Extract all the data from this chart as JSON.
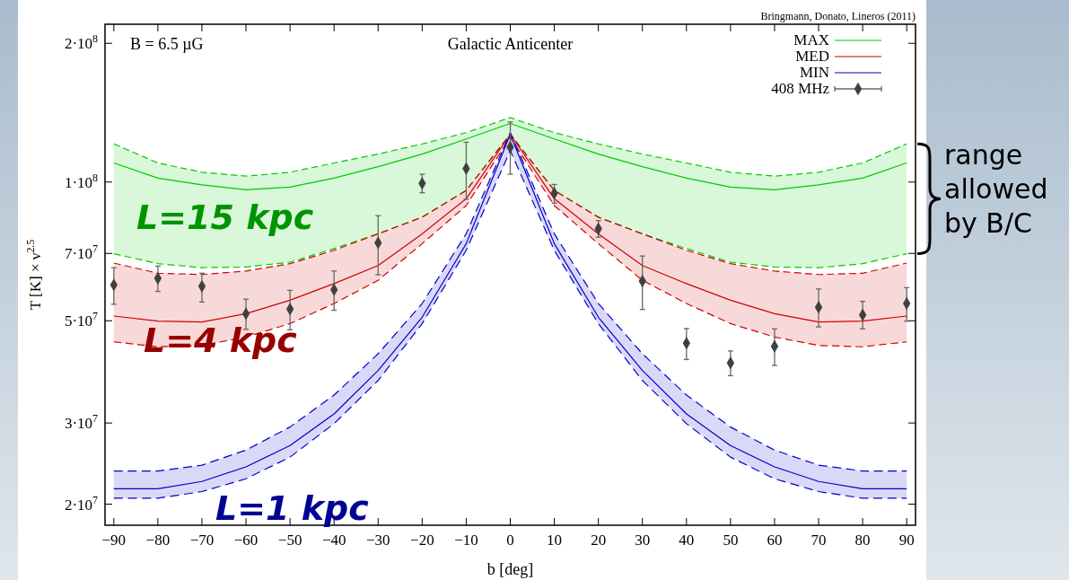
{
  "chart_data": {
    "type": "line",
    "title": "Galactic Anticenter",
    "xlabel": "b [deg]",
    "ylabel": "T [K] × ν$^{2.5}$",
    "log": "y",
    "xlim": [
      -92,
      92
    ],
    "ylim": [
      18000000.0,
      220000000.0
    ],
    "xticks": [
      -90,
      -80,
      -70,
      -60,
      -50,
      -40,
      -30,
      -20,
      -10,
      0,
      10,
      20,
      30,
      40,
      50,
      60,
      70,
      80,
      90
    ],
    "yticks": [
      {
        "value": 20000000.0,
        "label": "2·10$^{7}$"
      },
      {
        "value": 30000000.0,
        "label": "3·10$^{7}$"
      },
      {
        "value": 50000000.0,
        "label": "5·10$^{7}$"
      },
      {
        "value": 70000000.0,
        "label": "7·10$^{7}$"
      },
      {
        "value": 100000000.0,
        "label": "1·10$^{8}$"
      },
      {
        "value": 200000000.0,
        "label": "2·10$^{8}$"
      }
    ],
    "x": [
      -90,
      -80,
      -70,
      -60,
      -50,
      -40,
      -30,
      -20,
      -10,
      0,
      10,
      20,
      30,
      40,
      50,
      60,
      70,
      80,
      90
    ],
    "legend": "top right",
    "series": [
      {
        "name": "MAX",
        "color": "#00cc00",
        "values": [
          110000000.0,
          102000000.0,
          98600000.0,
          96200000.0,
          97500000.0,
          102000000.0,
          108000000.0,
          115000000.0,
          124000000.0,
          134000000.0,
          124000000.0,
          115000000.0,
          108000000.0,
          102000000.0,
          97500000.0,
          96200000.0,
          98600000.0,
          102000000.0,
          110000000.0
        ],
        "upper": [
          121000000.0,
          110000000.0,
          105000000.0,
          103000000.0,
          105000000.0,
          110000000.0,
          115000000.0,
          121000000.0,
          128000000.0,
          138000000.0,
          128000000.0,
          121000000.0,
          115000000.0,
          110000000.0,
          105000000.0,
          103000000.0,
          105000000.0,
          110000000.0,
          121000000.0
        ],
        "lower": [
          69900000.0,
          66500000.0,
          65200000.0,
          65400000.0,
          67000000.0,
          71700000.0,
          77200000.0,
          83900000.0,
          95900000.0,
          127000000.0,
          95900000.0,
          83900000.0,
          77200000.0,
          71700000.0,
          67000000.0,
          65400000.0,
          65200000.0,
          66500000.0,
          69900000.0
        ]
      },
      {
        "name": "MED",
        "color": "#d00000",
        "values": [
          51200000.0,
          49900000.0,
          49700000.0,
          51800000.0,
          55400000.0,
          60200000.0,
          65900000.0,
          77200000.0,
          92000000.0,
          127000000.0,
          92000000.0,
          77200000.0,
          65900000.0,
          60200000.0,
          55400000.0,
          51800000.0,
          49700000.0,
          49900000.0,
          51200000.0
        ],
        "upper": [
          66700000.0,
          63400000.0,
          63000000.0,
          64100000.0,
          66500000.0,
          71100000.0,
          77200000.0,
          83900000.0,
          95900000.0,
          127000000.0,
          95900000.0,
          83900000.0,
          77200000.0,
          71100000.0,
          66500000.0,
          64100000.0,
          63000000.0,
          63400000.0,
          66700000.0
        ],
        "lower": [
          45000000.0,
          43900000.0,
          44200000.0,
          46100000.0,
          49300000.0,
          54500000.0,
          61200000.0,
          73500000.0,
          88900000.0,
          125000000.0,
          88900000.0,
          73500000.0,
          61200000.0,
          54500000.0,
          49300000.0,
          46100000.0,
          44200000.0,
          43900000.0,
          45000000.0
        ]
      },
      {
        "name": "MIN",
        "color": "#0000cc",
        "values": [
          21600000.0,
          21600000.0,
          22400000.0,
          24100000.0,
          26800000.0,
          31400000.0,
          39000000.0,
          50900000.0,
          73500000.0,
          127000000.0,
          73500000.0,
          50900000.0,
          39000000.0,
          31400000.0,
          26800000.0,
          24100000.0,
          22400000.0,
          21600000.0,
          21600000.0
        ],
        "upper": [
          23600000.0,
          23600000.0,
          24300000.0,
          26200000.0,
          29400000.0,
          34500000.0,
          42400000.0,
          54500000.0,
          77200000.0,
          128000000.0,
          77200000.0,
          54500000.0,
          42400000.0,
          34500000.0,
          29400000.0,
          26200000.0,
          24300000.0,
          23600000.0,
          23600000.0
        ],
        "lower": [
          20600000.0,
          20600000.0,
          21300000.0,
          22700000.0,
          25300000.0,
          29900000.0,
          37100000.0,
          49300000.0,
          71100000.0,
          117000000.0,
          71100000.0,
          49300000.0,
          37100000.0,
          29900000.0,
          25300000.0,
          22700000.0,
          21300000.0,
          20600000.0,
          20600000.0
        ]
      },
      {
        "color": "#00cc00",
        "line_style": "dashed",
        "values": [
          121000000.0,
          110000000.0,
          105000000.0,
          103000000.0,
          105000000.0,
          110000000.0,
          115000000.0,
          121000000.0,
          128000000.0,
          138000000.0,
          128000000.0,
          121000000.0,
          115000000.0,
          110000000.0,
          105000000.0,
          103000000.0,
          105000000.0,
          110000000.0,
          121000000.0
        ]
      },
      {
        "color": "#00cc00",
        "line_style": "dashed",
        "values": [
          69900000.0,
          66500000.0,
          65200000.0,
          65400000.0,
          67000000.0,
          71700000.0,
          77200000.0,
          83900000.0,
          95900000.0,
          127000000.0,
          95900000.0,
          83900000.0,
          77200000.0,
          71700000.0,
          67000000.0,
          65400000.0,
          65200000.0,
          66500000.0,
          69900000.0
        ]
      },
      {
        "color": "#d00000",
        "line_style": "dashed",
        "values": [
          66700000.0,
          63400000.0,
          63000000.0,
          64100000.0,
          66500000.0,
          71100000.0,
          77200000.0,
          83900000.0,
          95900000.0,
          127000000.0,
          95900000.0,
          83900000.0,
          77200000.0,
          71100000.0,
          66500000.0,
          64100000.0,
          63000000.0,
          63400000.0,
          66700000.0
        ]
      },
      {
        "color": "#d00000",
        "line_style": "dashed",
        "values": [
          45000000.0,
          43900000.0,
          44200000.0,
          46100000.0,
          49300000.0,
          54500000.0,
          61200000.0,
          73500000.0,
          88900000.0,
          125000000.0,
          88900000.0,
          73500000.0,
          61200000.0,
          54500000.0,
          49300000.0,
          46100000.0,
          44200000.0,
          43900000.0,
          45000000.0
        ]
      },
      {
        "color": "#0000cc",
        "line_style": "dashed",
        "values": [
          23600000.0,
          23600000.0,
          24300000.0,
          26200000.0,
          29400000.0,
          34500000.0,
          42400000.0,
          54500000.0,
          77200000.0,
          128000000.0,
          77200000.0,
          54500000.0,
          42400000.0,
          34500000.0,
          29400000.0,
          26200000.0,
          24300000.0,
          23600000.0,
          23600000.0
        ]
      },
      {
        "color": "#0000cc",
        "line_style": "dashed",
        "values": [
          20600000.0,
          20600000.0,
          21300000.0,
          22700000.0,
          25300000.0,
          29900000.0,
          37100000.0,
          49300000.0,
          71100000.0,
          117000000.0,
          71100000.0,
          49300000.0,
          37100000.0,
          29900000.0,
          25300000.0,
          22700000.0,
          21300000.0,
          20600000.0,
          20600000.0
        ]
      },
      {
        "name": "408 MHz",
        "type": "scatter",
        "color": "#404040",
        "marker": "diamond",
        "values": [
          59800000.0,
          61800000.0,
          59400000.0,
          51800000.0,
          53000000.0,
          58400000.0,
          73800000.0,
          99300000.0,
          107000000.0,
          119000000.0,
          94600000.0,
          79200000.0,
          61000000.0,
          44700000.0,
          40500000.0,
          44000000.0,
          53500000.0,
          51500000.0,
          54500000.0
        ],
        "errors": [
          [
            54300000.0,
            65200000.0
          ],
          [
            57900000.0,
            65700000.0
          ],
          [
            54900000.0,
            63400000.0
          ],
          [
            47900000.0,
            55700000.0
          ],
          [
            47800000.0,
            58200000.0
          ],
          [
            52700000.0,
            64100000.0
          ],
          [
            62900000.0,
            84500000.0
          ],
          [
            94800000.0,
            104000000.0
          ],
          [
            91800000.0,
            122000000.0
          ],
          [
            104000000.0,
            135000000.0
          ],
          [
            90000000.0,
            98800000.0
          ],
          [
            75900000.0,
            82500000.0
          ],
          [
            52900000.0,
            69100000.0
          ],
          [
            41200000.0,
            48100000.0
          ],
          [
            38000000.0,
            43000000.0
          ],
          [
            40000000.0,
            48000000.0
          ],
          [
            48500000.0,
            58600000.0
          ],
          [
            48000000.0,
            55100000.0
          ],
          [
            49900000.0,
            59000000.0
          ]
        ]
      }
    ],
    "annotations": [
      "L=15 kpc",
      "L=4 kpc",
      "L=1 kpc",
      "B = 6.5 µG",
      "Bringmann, Donato, Lineros (2011)",
      "range allowed by B/C"
    ]
  }
}
